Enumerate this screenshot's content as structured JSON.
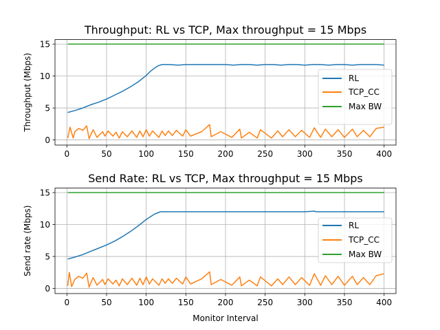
{
  "chart_data": [
    {
      "type": "line",
      "title": "Throughput: RL vs TCP, Max throughput = 15 Mbps",
      "xlabel": "",
      "ylabel": "Throughput (Mbps)",
      "xlim": [
        -15,
        415
      ],
      "ylim": [
        -0.8,
        15.7
      ],
      "xticks": [
        0,
        50,
        100,
        150,
        200,
        250,
        300,
        350,
        400
      ],
      "yticks": [
        0,
        5,
        10,
        15
      ],
      "grid": true,
      "legend_position": "center-right",
      "series": [
        {
          "name": "RL",
          "color": "#1f77b4",
          "x": [
            1,
            10,
            20,
            30,
            40,
            50,
            60,
            70,
            80,
            90,
            100,
            105,
            110,
            115,
            120,
            130,
            140,
            150,
            160,
            170,
            180,
            190,
            200,
            210,
            220,
            230,
            240,
            250,
            260,
            270,
            280,
            290,
            300,
            310,
            320,
            330,
            340,
            350,
            360,
            370,
            380,
            390,
            400
          ],
          "y": [
            4.3,
            4.6,
            5.0,
            5.5,
            5.9,
            6.4,
            7.0,
            7.6,
            8.3,
            9.1,
            10.1,
            10.7,
            11.2,
            11.6,
            11.8,
            11.8,
            11.7,
            11.8,
            11.8,
            11.8,
            11.8,
            11.8,
            11.8,
            11.7,
            11.8,
            11.8,
            11.7,
            11.8,
            11.8,
            11.7,
            11.8,
            11.8,
            11.7,
            11.8,
            11.8,
            11.7,
            11.8,
            11.8,
            11.7,
            11.8,
            11.8,
            11.8,
            11.7
          ]
        },
        {
          "name": "TCP_CC",
          "color": "#ff7f0e",
          "x": [
            1,
            4,
            8,
            10,
            15,
            20,
            25,
            28,
            33,
            38,
            45,
            48,
            52,
            58,
            62,
            66,
            70,
            76,
            82,
            88,
            92,
            96,
            100,
            104,
            108,
            116,
            120,
            124,
            128,
            133,
            138,
            146,
            150,
            156,
            170,
            180,
            182,
            194,
            208,
            218,
            220,
            230,
            240,
            244,
            258,
            266,
            272,
            280,
            288,
            296,
            306,
            312,
            320,
            326,
            334,
            342,
            350,
            360,
            366,
            374,
            382,
            390,
            400
          ],
          "y": [
            0.3,
            2.0,
            0.3,
            1.3,
            1.8,
            1.5,
            2.2,
            0.2,
            1.6,
            0.4,
            1.3,
            0.6,
            1.4,
            0.6,
            1.2,
            0.3,
            1.3,
            0.5,
            1.4,
            0.4,
            1.4,
            0.5,
            1.6,
            0.6,
            1.4,
            0.4,
            1.4,
            0.7,
            1.4,
            0.7,
            1.5,
            0.6,
            1.6,
            0.6,
            1.3,
            2.4,
            0.5,
            1.3,
            0.4,
            1.7,
            0.3,
            1.2,
            0.3,
            1.6,
            0.3,
            1.4,
            0.5,
            1.6,
            0.5,
            1.5,
            0.4,
            1.9,
            0.4,
            1.7,
            0.5,
            1.6,
            0.4,
            1.7,
            0.5,
            1.5,
            0.5,
            1.8,
            2.0
          ]
        },
        {
          "name": "Max BW",
          "color": "#2ca02c",
          "x": [
            1,
            400
          ],
          "y": [
            15,
            15
          ]
        }
      ]
    },
    {
      "type": "line",
      "title": "Send Rate: RL vs TCP, Max throughput = 15 Mbps",
      "xlabel": "Monitor Interval",
      "ylabel": "Send rate (Mbps)",
      "xlim": [
        -15,
        415
      ],
      "ylim": [
        -0.8,
        15.7
      ],
      "xticks": [
        0,
        50,
        100,
        150,
        200,
        250,
        300,
        350,
        400
      ],
      "yticks": [
        0,
        5,
        10,
        15
      ],
      "grid": true,
      "legend_position": "center-right",
      "series": [
        {
          "name": "RL",
          "color": "#1f77b4",
          "x": [
            1,
            10,
            20,
            30,
            40,
            50,
            60,
            70,
            80,
            90,
            100,
            110,
            118,
            120,
            150,
            200,
            250,
            300,
            312,
            314,
            350,
            400
          ],
          "y": [
            4.6,
            4.9,
            5.3,
            5.8,
            6.3,
            6.8,
            7.4,
            8.1,
            8.9,
            9.8,
            10.8,
            11.6,
            12.0,
            12.0,
            12.0,
            12.0,
            12.0,
            12.0,
            12.1,
            12.0,
            12.0,
            12.0
          ]
        },
        {
          "name": "TCP_CC",
          "color": "#ff7f0e",
          "x": [
            1,
            3,
            6,
            10,
            15,
            20,
            25,
            28,
            33,
            38,
            45,
            48,
            52,
            58,
            62,
            66,
            70,
            76,
            82,
            88,
            92,
            96,
            100,
            104,
            108,
            116,
            120,
            124,
            128,
            133,
            138,
            146,
            150,
            156,
            170,
            180,
            182,
            194,
            208,
            218,
            220,
            230,
            240,
            244,
            258,
            266,
            272,
            280,
            288,
            296,
            306,
            312,
            320,
            326,
            334,
            342,
            350,
            360,
            366,
            374,
            382,
            390,
            400
          ],
          "y": [
            0.4,
            2.5,
            0.3,
            1.4,
            1.9,
            1.6,
            2.4,
            0.2,
            1.7,
            0.5,
            1.4,
            0.6,
            1.5,
            0.7,
            1.3,
            0.4,
            1.5,
            0.6,
            1.6,
            0.5,
            1.6,
            0.6,
            1.8,
            0.7,
            1.5,
            0.5,
            1.5,
            0.8,
            1.5,
            0.8,
            1.6,
            0.7,
            1.8,
            0.7,
            1.5,
            2.6,
            0.6,
            1.4,
            0.5,
            1.8,
            0.4,
            1.3,
            0.4,
            1.8,
            0.4,
            1.5,
            0.6,
            1.8,
            0.6,
            1.7,
            0.5,
            2.3,
            0.5,
            2.0,
            0.6,
            1.9,
            0.5,
            1.9,
            0.6,
            1.7,
            0.6,
            2.0,
            2.3
          ]
        },
        {
          "name": "Max BW",
          "color": "#2ca02c",
          "x": [
            1,
            400
          ],
          "y": [
            15,
            15
          ]
        }
      ]
    }
  ]
}
